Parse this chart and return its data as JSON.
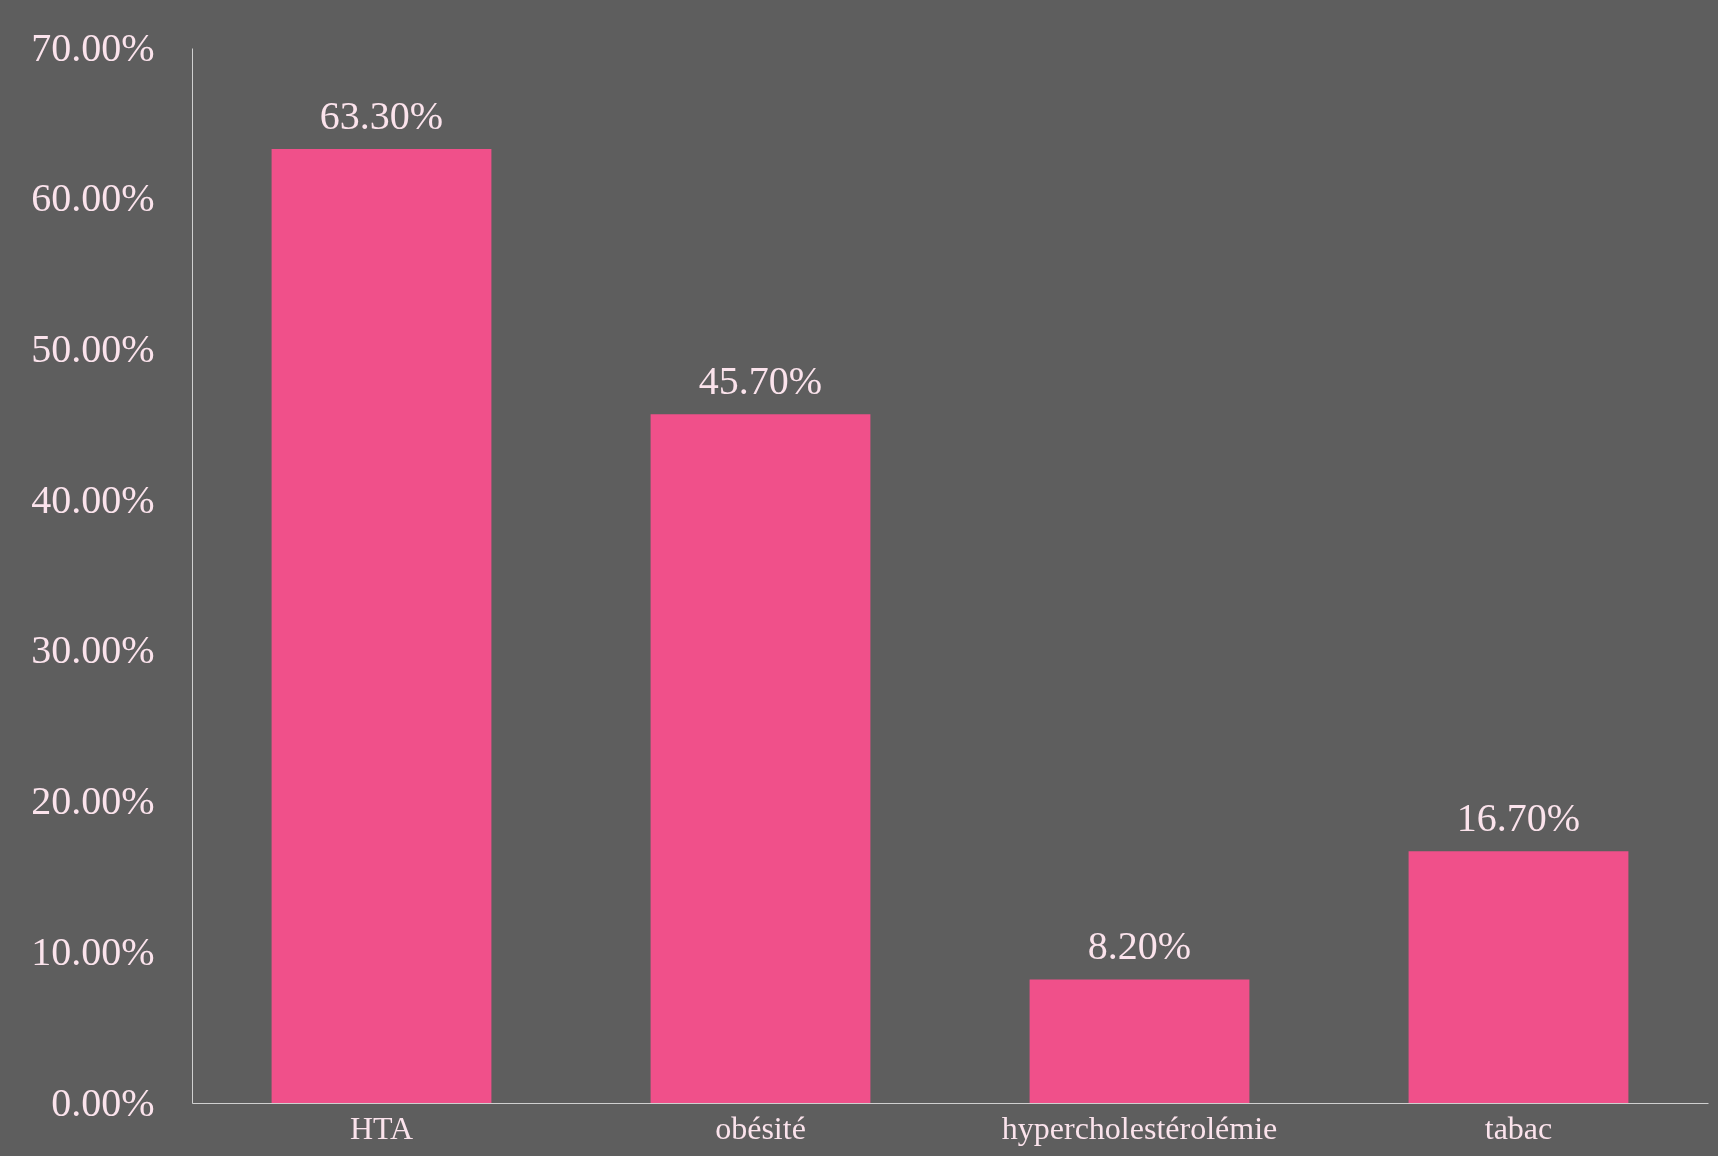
{
  "chart_data": {
    "type": "bar",
    "categories": [
      "HTA",
      "obésité",
      "hypercholestérolémie",
      "tabac"
    ],
    "values": [
      63.3,
      45.7,
      8.2,
      16.7
    ],
    "value_labels": [
      "63.30%",
      "45.70%",
      "8.20%",
      "16.70%"
    ],
    "color": "#f0508a",
    "ylim": [
      0,
      70
    ],
    "yticks": [
      {
        "value": 0,
        "label": "0.00%"
      },
      {
        "value": 10,
        "label": "10.00%"
      },
      {
        "value": 20,
        "label": "20.00%"
      },
      {
        "value": 30,
        "label": "30.00%"
      },
      {
        "value": 40,
        "label": "40.00%"
      },
      {
        "value": 50,
        "label": "50.00%"
      },
      {
        "value": 60,
        "label": "60.00%"
      },
      {
        "value": 70,
        "label": "70.00%"
      }
    ]
  }
}
